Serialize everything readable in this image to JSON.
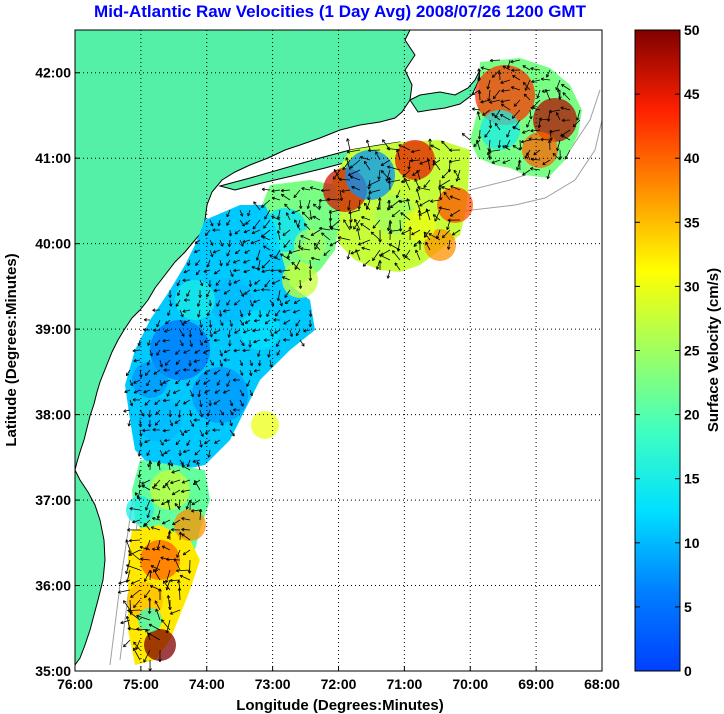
{
  "figure": {
    "title": "Mid-Atlantic Raw Velocities (1 Day Avg) 2008/07/26 1200 GMT",
    "title_color": "#0000ff",
    "xlabel": "Longitude (Degrees:Minutes)",
    "ylabel": "Latitude (Degrees:Minutes)",
    "grid": true,
    "colors": {
      "land": "#55f0a8",
      "water": "#ffffff",
      "coastline": "#000000",
      "isobath": "#a0a0a0",
      "vector": "#000000"
    }
  },
  "map": {
    "lon_range": [
      -76,
      -68
    ],
    "lat_range": [
      35,
      42.5
    ],
    "x_ticks": [
      {
        "value": -76,
        "label": "76:00"
      },
      {
        "value": -75,
        "label": "75:00"
      },
      {
        "value": -74,
        "label": "74:00"
      },
      {
        "value": -73,
        "label": "73:00"
      },
      {
        "value": -72,
        "label": "72:00"
      },
      {
        "value": -71,
        "label": "71:00"
      },
      {
        "value": -70,
        "label": "70:00"
      },
      {
        "value": -69,
        "label": "69:00"
      },
      {
        "value": -68,
        "label": "68:00"
      }
    ],
    "y_ticks": [
      {
        "value": 35,
        "label": "35:00"
      },
      {
        "value": 36,
        "label": "36:00"
      },
      {
        "value": 37,
        "label": "37:00"
      },
      {
        "value": 38,
        "label": "38:00"
      },
      {
        "value": 39,
        "label": "39:00"
      },
      {
        "value": 40,
        "label": "40:00"
      },
      {
        "value": 41,
        "label": "41:00"
      },
      {
        "value": 42,
        "label": "42:00"
      }
    ]
  },
  "colorbar": {
    "label": "Surface Velocity (cm/s)",
    "range": [
      0,
      50
    ],
    "ticks": [
      {
        "value": 0,
        "label": "0"
      },
      {
        "value": 5,
        "label": "5"
      },
      {
        "value": 10,
        "label": "10"
      },
      {
        "value": 15,
        "label": "15"
      },
      {
        "value": 20,
        "label": "20"
      },
      {
        "value": 25,
        "label": "25"
      },
      {
        "value": 30,
        "label": "30"
      },
      {
        "value": 35,
        "label": "35"
      },
      {
        "value": 40,
        "label": "40"
      },
      {
        "value": 45,
        "label": "45"
      },
      {
        "value": 50,
        "label": "50"
      }
    ],
    "colormap": "jet"
  }
}
